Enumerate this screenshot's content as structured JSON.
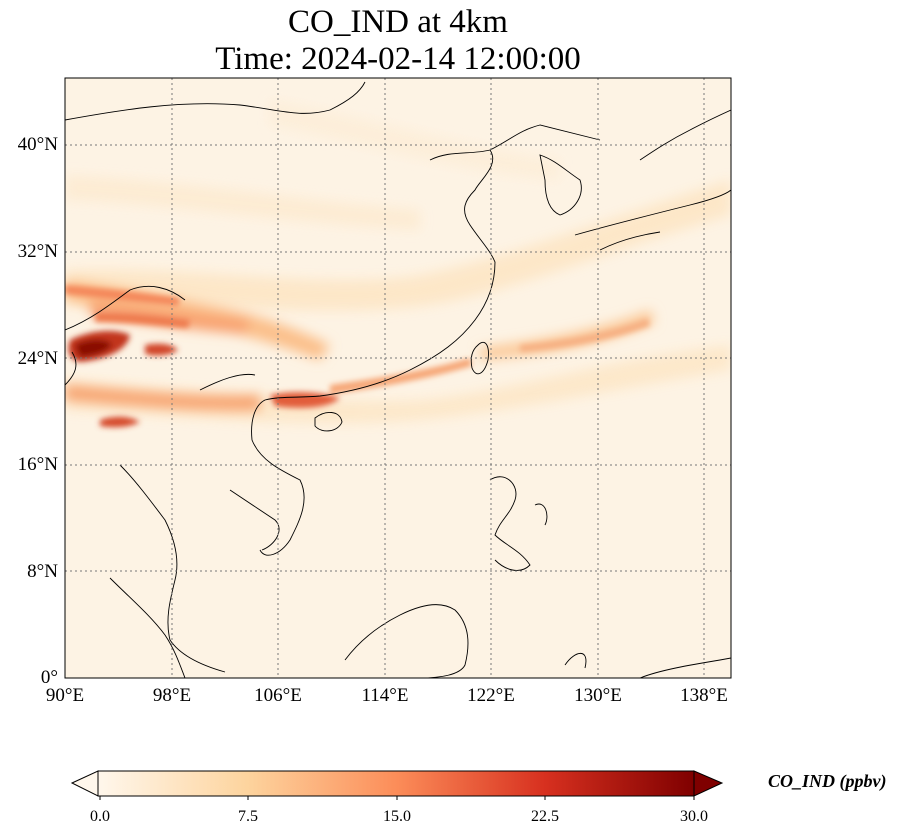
{
  "title": {
    "line1": "CO_IND at 4km",
    "line2": "Time: 2024-02-14 12:00:00"
  },
  "map": {
    "extent_lon": [
      90,
      140
    ],
    "extent_lat": [
      0,
      45
    ],
    "lat_ticks": [
      "0°",
      "8°N",
      "16°N",
      "24°N",
      "32°N",
      "40°N"
    ],
    "lon_ticks": [
      "90°E",
      "98°E",
      "106°E",
      "114°E",
      "122°E",
      "130°E",
      "138°E"
    ],
    "gridlines": true
  },
  "colorbar": {
    "label": "CO_IND (ppbv)",
    "ticks": [
      "0.0",
      "7.5",
      "15.0",
      "22.5",
      "30.0"
    ],
    "colormap": "OrRd",
    "colors": [
      "#fff7ec",
      "#fdd49e",
      "#fc8d59",
      "#d7301f",
      "#7f0000"
    ]
  }
}
